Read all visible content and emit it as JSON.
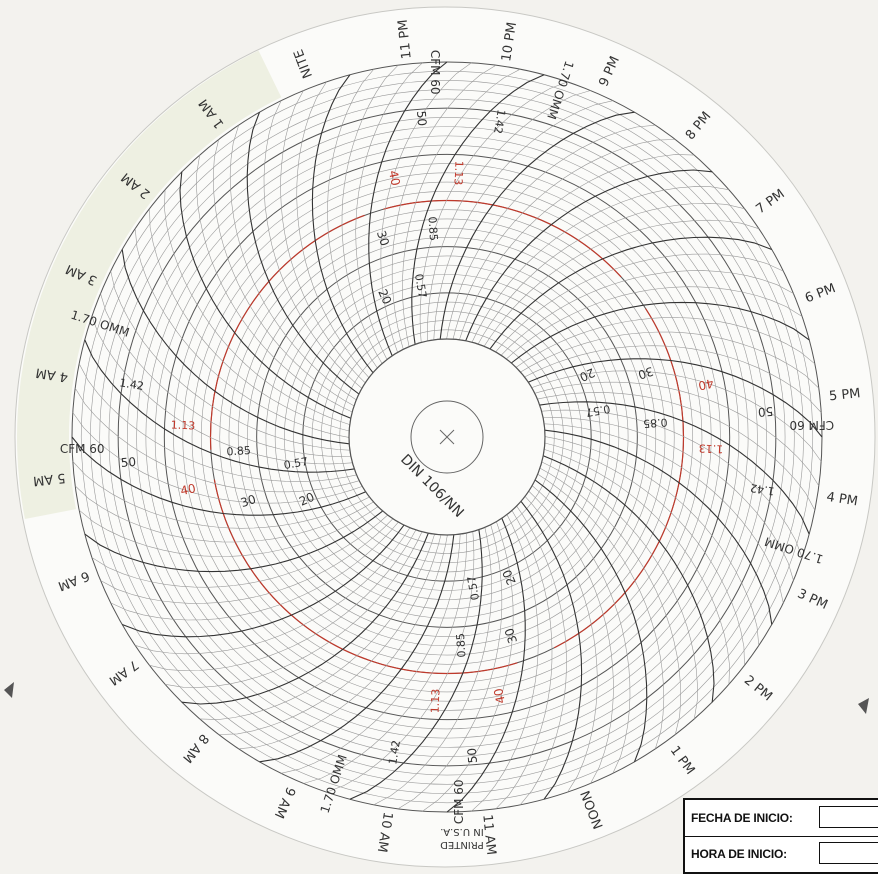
{
  "time_labels": [
    {
      "label": "NOON",
      "hour": 12
    },
    {
      "label": "1 PM",
      "hour": 13
    },
    {
      "label": "2 PM",
      "hour": 14
    },
    {
      "label": "3 PM",
      "hour": 15
    },
    {
      "label": "4 PM",
      "hour": 16
    },
    {
      "label": "5 PM",
      "hour": 17
    },
    {
      "label": "6 PM",
      "hour": 18
    },
    {
      "label": "7 PM",
      "hour": 19
    },
    {
      "label": "8 PM",
      "hour": 20
    },
    {
      "label": "9 PM",
      "hour": 21
    },
    {
      "label": "10 PM",
      "hour": 22
    },
    {
      "label": "11 PM",
      "hour": 23
    },
    {
      "label": "NITE",
      "hour": 24
    },
    {
      "label": "1 AM",
      "hour": 1
    },
    {
      "label": "2 AM",
      "hour": 2
    },
    {
      "label": "3 AM",
      "hour": 3
    },
    {
      "label": "4 AM",
      "hour": 4
    },
    {
      "label": "5 AM",
      "hour": 5
    },
    {
      "label": "6 AM",
      "hour": 6
    },
    {
      "label": "7 AM",
      "hour": 7
    },
    {
      "label": "8 AM",
      "hour": 8
    },
    {
      "label": "9 AM",
      "hour": 9
    },
    {
      "label": "10 AM",
      "hour": 10
    },
    {
      "label": "11 AM",
      "hour": 11
    }
  ],
  "scale": {
    "cfm_values": [
      "20",
      "30",
      "40",
      "50"
    ],
    "omm_values": [
      "0.57",
      "0.85",
      "1.13",
      "1.42"
    ],
    "outer_cfm_label": "CFM 60",
    "outer_omm_label": "1.70 OMM",
    "highlight_cfm": "40",
    "highlight_omm": "1.13"
  },
  "chart_model": "DIN 106/NN",
  "printed_label": {
    "line1": "PRINTED",
    "line2": "IN U.S.A."
  },
  "form": {
    "start_date_label": "FECHA DE INICIO:",
    "start_time_label": "HORA DE INICIO:"
  },
  "colors": {
    "paper": "#fbfbf9",
    "grid": "#9a9a9a",
    "ink": "#333333",
    "red": "#c0392b",
    "time_band": "#eef0e2"
  }
}
